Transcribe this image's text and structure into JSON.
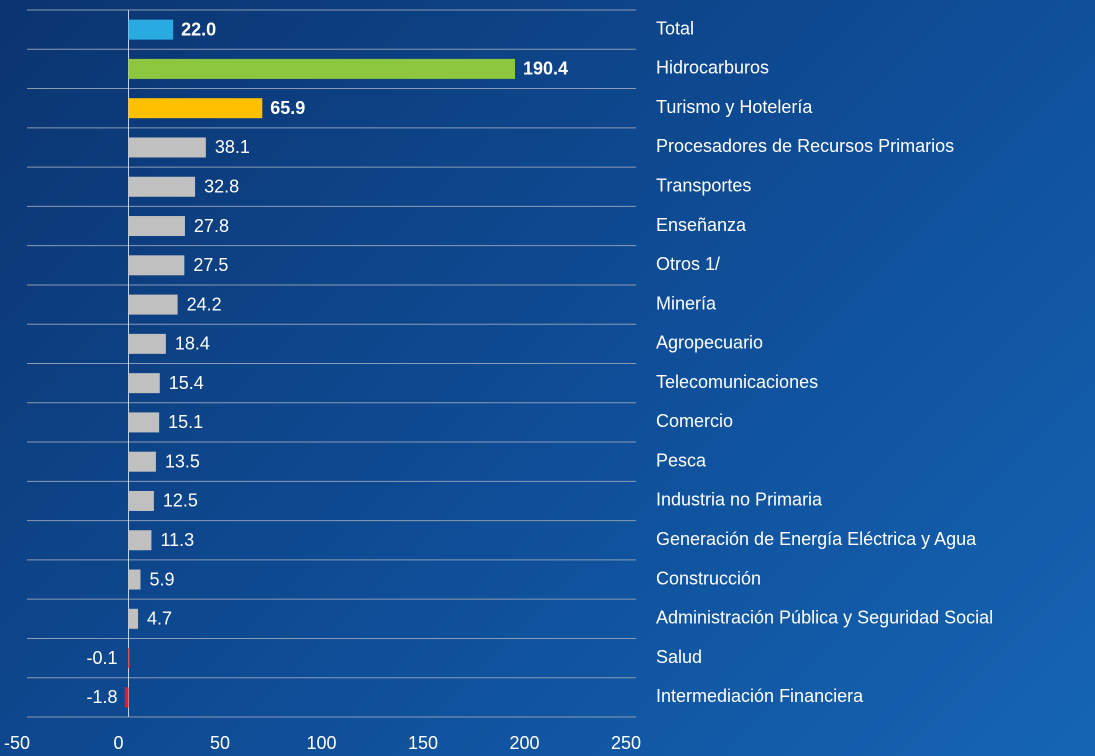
{
  "chart_data": {
    "type": "barh",
    "categories": [
      "Total",
      "Hidrocarburos",
      "Turismo y Hotelería",
      "Procesadores de Recursos Primarios",
      "Transportes",
      "Enseñanza",
      "Otros 1/",
      "Minería",
      "Agropecuario",
      "Telecomunicaciones",
      "Comercio",
      "Pesca",
      "Industria no Primaria",
      "Generación de Energía Eléctrica y Agua",
      "Construcción",
      "Administración Pública y Seguridad Social",
      "Salud",
      "Intermediación Financiera"
    ],
    "values": [
      22.0,
      190.4,
      65.9,
      38.1,
      32.8,
      27.8,
      27.5,
      24.2,
      18.4,
      15.4,
      15.1,
      13.5,
      12.5,
      11.3,
      5.9,
      4.7,
      -0.1,
      -1.8
    ],
    "value_labels": [
      "22.0",
      "190.4",
      "65.9",
      "38.1",
      "32.8",
      "27.8",
      "27.5",
      "24.2",
      "18.4",
      "15.4",
      "15.1",
      "13.5",
      "12.5",
      "11.3",
      "5.9",
      "4.7",
      "-0.1",
      "-1.8"
    ],
    "colors": [
      "#29aae1",
      "#8dc63f",
      "#ffc000",
      "#c0c0c0",
      "#c0c0c0",
      "#c0c0c0",
      "#c0c0c0",
      "#c0c0c0",
      "#c0c0c0",
      "#c0c0c0",
      "#c0c0c0",
      "#c0c0c0",
      "#c0c0c0",
      "#c0c0c0",
      "#c0c0c0",
      "#c0c0c0",
      "#e02020",
      "#e02020"
    ],
    "label_colors": [
      "#29aae1",
      "#8dc63f",
      "#ffc000",
      "#ffffff",
      "#ffffff",
      "#ffffff",
      "#ffffff",
      "#ffffff",
      "#ffffff",
      "#ffffff",
      "#ffffff",
      "#ffffff",
      "#ffffff",
      "#ffffff",
      "#ffffff",
      "#ffffff",
      "#ffffff",
      "#ffffff"
    ],
    "xlim": [
      -50,
      250
    ],
    "xticks": [
      -50,
      0,
      50,
      100,
      150,
      200,
      250
    ]
  }
}
